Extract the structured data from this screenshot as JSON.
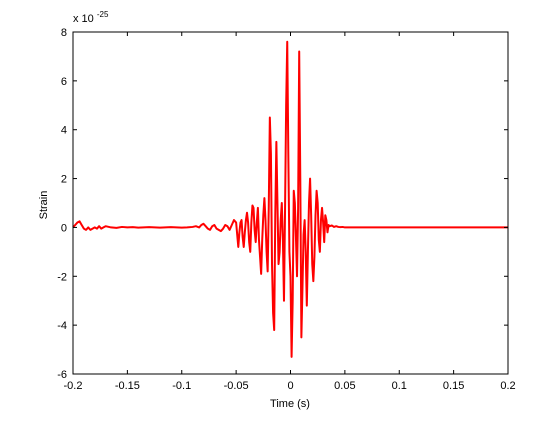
{
  "figure": {
    "background": "#ffffff"
  },
  "chart_data": {
    "type": "line",
    "title": "",
    "xlabel": "Time (s)",
    "ylabel": "Strain",
    "y_multiplier_label": "x 10",
    "y_multiplier_exponent": "-25",
    "xlim": [
      -0.2,
      0.2
    ],
    "ylim": [
      -6,
      8
    ],
    "x_ticks": [
      -0.2,
      -0.15,
      -0.1,
      -0.05,
      0,
      0.05,
      0.1,
      0.15,
      0.2
    ],
    "x_tick_labels": [
      "-0.2",
      "-0.15",
      "-0.1",
      "-0.05",
      "0",
      "0.05",
      "0.1",
      "0.15",
      "0.2"
    ],
    "y_ticks": [
      -6,
      -4,
      -2,
      0,
      2,
      4,
      6,
      8
    ],
    "y_tick_labels": [
      "-6",
      "-4",
      "-2",
      "0",
      "2",
      "4",
      "6",
      "8"
    ],
    "grid": false,
    "legend": false,
    "series": [
      {
        "color": "#ff0000",
        "x": [
          -0.2,
          -0.198,
          -0.196,
          -0.194,
          -0.192,
          -0.19,
          -0.188,
          -0.186,
          -0.184,
          -0.182,
          -0.18,
          -0.178,
          -0.176,
          -0.174,
          -0.172,
          -0.17,
          -0.165,
          -0.16,
          -0.155,
          -0.15,
          -0.145,
          -0.14,
          -0.135,
          -0.13,
          -0.125,
          -0.12,
          -0.115,
          -0.11,
          -0.105,
          -0.1,
          -0.095,
          -0.09,
          -0.087,
          -0.084,
          -0.082,
          -0.08,
          -0.078,
          -0.076,
          -0.074,
          -0.072,
          -0.07,
          -0.068,
          -0.066,
          -0.064,
          -0.062,
          -0.06,
          -0.058,
          -0.056,
          -0.054,
          -0.052,
          -0.05,
          -0.049,
          -0.048,
          -0.047,
          -0.046,
          -0.045,
          -0.044,
          -0.043,
          -0.042,
          -0.041,
          -0.04,
          -0.039,
          -0.038,
          -0.037,
          -0.036,
          -0.035,
          -0.034,
          -0.033,
          -0.032,
          -0.031,
          -0.03,
          -0.029,
          -0.028,
          -0.027,
          -0.026,
          -0.025,
          -0.024,
          -0.023,
          -0.022,
          -0.021,
          -0.02,
          -0.019,
          -0.018,
          -0.017,
          -0.016,
          -0.015,
          -0.014,
          -0.013,
          -0.012,
          -0.011,
          -0.01,
          -0.009,
          -0.008,
          -0.007,
          -0.006,
          -0.005,
          -0.004,
          -0.003,
          -0.002,
          -0.001,
          0,
          0.001,
          0.002,
          0.003,
          0.004,
          0.005,
          0.006,
          0.007,
          0.008,
          0.009,
          0.01,
          0.011,
          0.012,
          0.013,
          0.014,
          0.015,
          0.016,
          0.017,
          0.018,
          0.019,
          0.02,
          0.021,
          0.022,
          0.023,
          0.024,
          0.025,
          0.026,
          0.027,
          0.028,
          0.029,
          0.03,
          0.031,
          0.032,
          0.033,
          0.034,
          0.035,
          0.036,
          0.038,
          0.04,
          0.042,
          0.044,
          0.046,
          0.048,
          0.05,
          0.055,
          0.06,
          0.1,
          0.15,
          0.2
        ],
        "y": [
          0,
          0.1,
          0.2,
          0.25,
          0.1,
          -0.05,
          -0.1,
          0,
          -0.1,
          -0.05,
          0,
          -0.05,
          0.05,
          -0.05,
          0,
          0.05,
          0,
          -0.02,
          0.02,
          0,
          0.01,
          -0.01,
          0,
          0.01,
          0,
          -0.01,
          0,
          0.01,
          0,
          -0.01,
          0,
          0.02,
          0.05,
          0,
          0.1,
          0.15,
          0.05,
          -0.05,
          -0.1,
          0.05,
          0.1,
          -0.05,
          -0.1,
          -0.15,
          -0.05,
          0.1,
          0.05,
          -0.1,
          0.1,
          0.3,
          0.2,
          -0.3,
          -0.8,
          -0.2,
          0.2,
          0.3,
          -0.4,
          -0.8,
          -0.2,
          0.3,
          0.6,
          0.2,
          -0.6,
          -1.0,
          0.2,
          0.9,
          0.8,
          -0.1,
          -0.6,
          0.2,
          0.8,
          -0.5,
          -1.2,
          -1.9,
          -0.5,
          0.5,
          1.2,
          0.3,
          -1.0,
          -1.8,
          0.8,
          4.5,
          3.0,
          -1.5,
          -3.5,
          -4.2,
          0.5,
          3.5,
          1.0,
          -1.5,
          -1.0,
          0.3,
          1.0,
          -0.5,
          -3.0,
          0.8,
          5.0,
          7.6,
          3.0,
          -1.0,
          -2.0,
          -5.3,
          -3.0,
          1.5,
          1.0,
          -0.4,
          -2.0,
          0.8,
          7.2,
          2.0,
          -4.5,
          -2.5,
          -0.3,
          0.3,
          -1.0,
          -3.2,
          -1.0,
          1.0,
          2.0,
          0.5,
          -1.5,
          -2.2,
          -1.2,
          0.5,
          1.5,
          1.0,
          -0.5,
          -1.0,
          0.3,
          0.8,
          0.2,
          -0.6,
          0.5,
          0.3,
          -0.2,
          0.1,
          0.05,
          0.08,
          0.02,
          0.05,
          0.02,
          0.01,
          0.02,
          0,
          0,
          0,
          0,
          0,
          0
        ]
      }
    ]
  }
}
